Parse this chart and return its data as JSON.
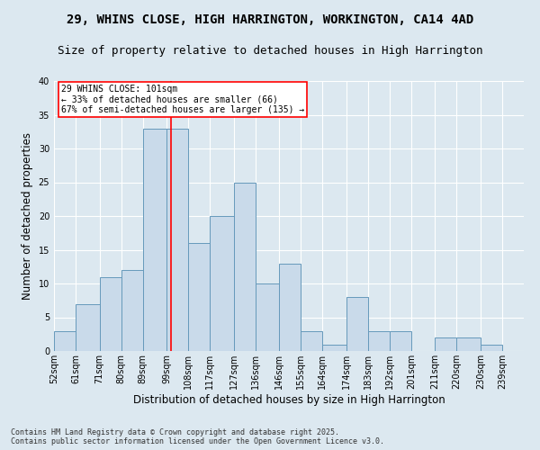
{
  "title1": "29, WHINS CLOSE, HIGH HARRINGTON, WORKINGTON, CA14 4AD",
  "title2": "Size of property relative to detached houses in High Harrington",
  "xlabel": "Distribution of detached houses by size in High Harrington",
  "ylabel": "Number of detached properties",
  "bins": [
    52,
    61,
    71,
    80,
    89,
    99,
    108,
    117,
    127,
    136,
    146,
    155,
    164,
    174,
    183,
    192,
    201,
    211,
    220,
    230,
    239
  ],
  "counts": [
    3,
    7,
    11,
    12,
    33,
    33,
    16,
    20,
    25,
    10,
    13,
    3,
    1,
    8,
    3,
    3,
    0,
    2,
    2,
    1
  ],
  "bar_color": "#c9daea",
  "bar_edge_color": "#6699bb",
  "vline_color": "red",
  "vline_x": 101,
  "annotation_text": "29 WHINS CLOSE: 101sqm\n← 33% of detached houses are smaller (66)\n67% of semi-detached houses are larger (135) →",
  "annotation_box_color": "white",
  "annotation_border_color": "red",
  "ylim": [
    0,
    40
  ],
  "yticks": [
    0,
    5,
    10,
    15,
    20,
    25,
    30,
    35,
    40
  ],
  "background_color": "#dce8f0",
  "footer_text": "Contains HM Land Registry data © Crown copyright and database right 2025.\nContains public sector information licensed under the Open Government Licence v3.0.",
  "title_fontsize": 10,
  "subtitle_fontsize": 9,
  "tick_fontsize": 7,
  "label_fontsize": 8.5,
  "footer_fontsize": 6
}
